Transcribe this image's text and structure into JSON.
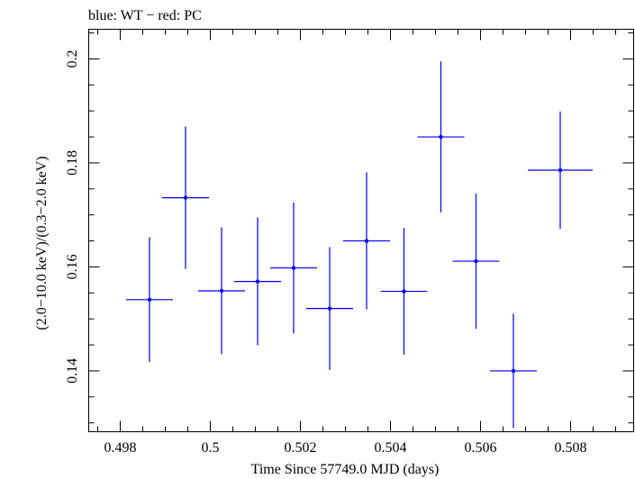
{
  "chart_data": {
    "type": "scatter",
    "title": "blue: WT − red: PC",
    "xlabel": "Time Since 57749.0 MJD (days)",
    "ylabel": "(2.0−10.0 keV)/(0.3−2.0 keV)",
    "xlim": [
      0.4973,
      0.5094
    ],
    "ylim": [
      0.1283,
      0.2057
    ],
    "x_ticks": [
      0.498,
      0.5,
      0.502,
      0.504,
      0.506,
      0.508
    ],
    "x_tick_labels": [
      "0.498",
      "0.5",
      "0.502",
      "0.504",
      "0.506",
      "0.508"
    ],
    "y_ticks": [
      0.14,
      0.16,
      0.18,
      0.2
    ],
    "y_tick_labels": [
      "0.14",
      "0.16",
      "0.18",
      "0.2"
    ],
    "grid": false,
    "series": [
      {
        "color": "#0000ee",
        "points": [
          {
            "x": 0.49865,
            "y": 0.1537,
            "xerr": 0.00052,
            "yerr_low": 0.012,
            "yerr_high": 0.012
          },
          {
            "x": 0.49945,
            "y": 0.1733,
            "xerr": 0.00052,
            "yerr_low": 0.0137,
            "yerr_high": 0.0137
          },
          {
            "x": 0.50025,
            "y": 0.1554,
            "xerr": 0.00052,
            "yerr_low": 0.0122,
            "yerr_high": 0.0122
          },
          {
            "x": 0.50105,
            "y": 0.1572,
            "xerr": 0.00052,
            "yerr_low": 0.0123,
            "yerr_high": 0.0123
          },
          {
            "x": 0.50185,
            "y": 0.1598,
            "xerr": 0.00052,
            "yerr_low": 0.0126,
            "yerr_high": 0.0126
          },
          {
            "x": 0.50265,
            "y": 0.152,
            "xerr": 0.00052,
            "yerr_low": 0.0118,
            "yerr_high": 0.0118
          },
          {
            "x": 0.50347,
            "y": 0.165,
            "xerr": 0.00052,
            "yerr_low": 0.0132,
            "yerr_high": 0.0132
          },
          {
            "x": 0.5043,
            "y": 0.1553,
            "xerr": 0.00052,
            "yerr_low": 0.0122,
            "yerr_high": 0.0122
          },
          {
            "x": 0.50512,
            "y": 0.185,
            "xerr": 0.00052,
            "yerr_low": 0.0145,
            "yerr_high": 0.0145
          },
          {
            "x": 0.5059,
            "y": 0.1611,
            "xerr": 0.00052,
            "yerr_low": 0.013,
            "yerr_high": 0.013
          },
          {
            "x": 0.50673,
            "y": 0.14,
            "xerr": 0.00052,
            "yerr_low": 0.011,
            "yerr_high": 0.011
          },
          {
            "x": 0.50777,
            "y": 0.1786,
            "xerr": 0.00072,
            "yerr_low": 0.0113,
            "yerr_high": 0.0113
          }
        ]
      }
    ]
  }
}
